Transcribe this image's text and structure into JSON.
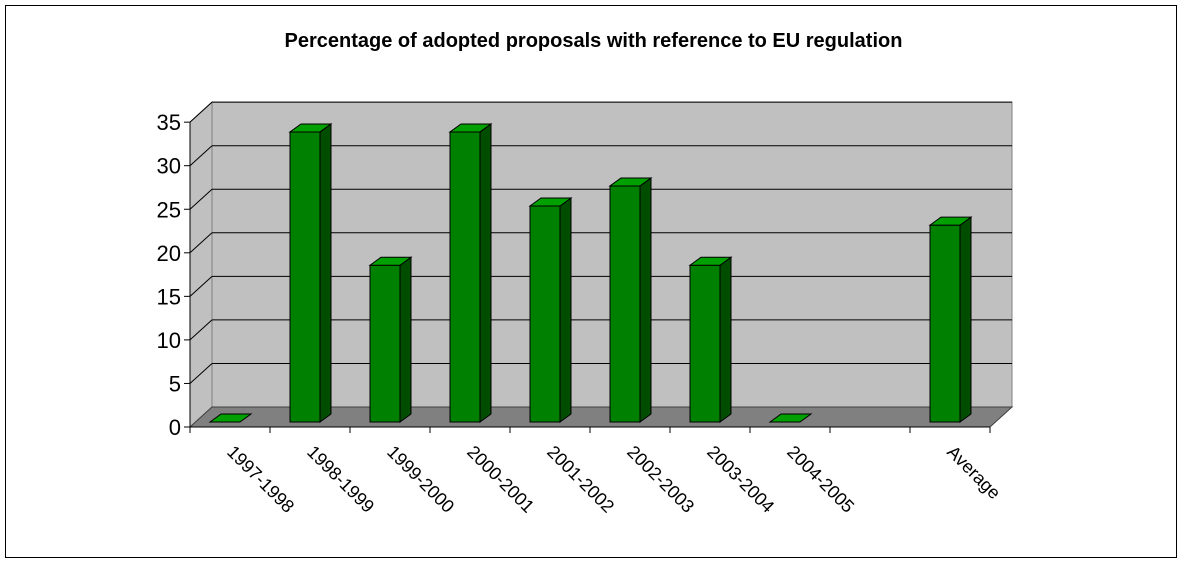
{
  "chart_data": {
    "type": "bar",
    "title": "Percentage of adopted proposals with reference to EU regulation",
    "xlabel": "",
    "ylabel": "",
    "categories": [
      "1997-1998",
      "1998-1999",
      "1999-2000",
      "2000-2001",
      "2001-2002",
      "2002-2003",
      "2003-2004",
      "2004-2005",
      "",
      "Average"
    ],
    "values": [
      0,
      33.3,
      18,
      33.3,
      24.8,
      27.1,
      18,
      0,
      null,
      22.6
    ],
    "ylim": [
      0,
      35
    ],
    "yticks": [
      0,
      5,
      10,
      15,
      20,
      25,
      30,
      35
    ],
    "grid": true,
    "legend": "none",
    "colors": {
      "bar_front": "#008000",
      "bar_side": "#004d00",
      "bar_top": "#00a000",
      "plot_wall": "#c0c0c0",
      "plot_floor": "#808080"
    }
  }
}
